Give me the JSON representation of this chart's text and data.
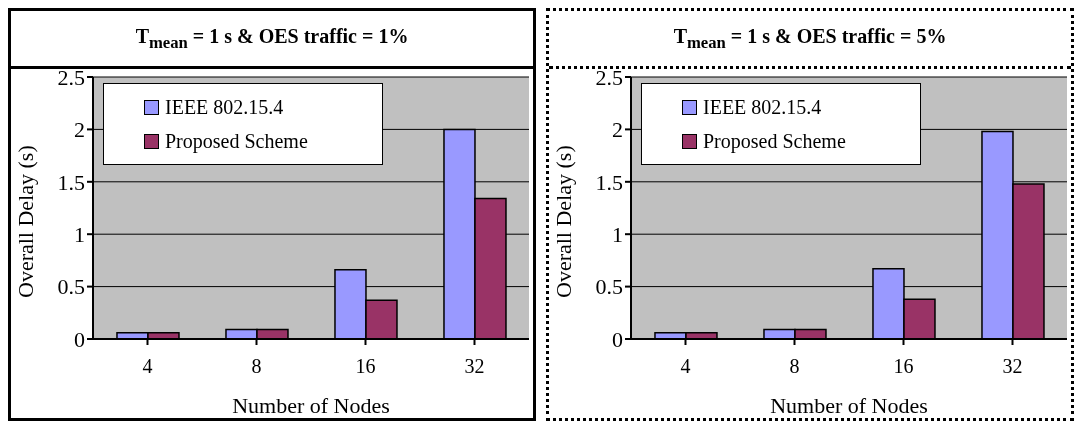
{
  "chart_data": [
    {
      "type": "bar",
      "title": "T$_{mean}$ = 1 s & OES traffic = 1%",
      "xlabel": "Number of Nodes",
      "ylabel": "Overall Delay (s)",
      "categories": [
        "4",
        "8",
        "16",
        "32"
      ],
      "series": [
        {
          "name": "IEEE 802.15.4",
          "color": "#9999ff",
          "values": [
            0.06,
            0.09,
            0.66,
            2.0
          ]
        },
        {
          "name": "Proposed Scheme",
          "color": "#993366",
          "values": [
            0.06,
            0.09,
            0.37,
            1.34
          ]
        }
      ],
      "ylim": [
        0,
        2.5
      ],
      "yticks": [
        0,
        0.5,
        1,
        1.5,
        2,
        2.5
      ],
      "grid": "y",
      "legend": "top left"
    },
    {
      "type": "bar",
      "title": "T$_{mean}$ = 1 s & OES traffic = 5%",
      "xlabel": "Number of Nodes",
      "ylabel": "Overall Delay (s)",
      "categories": [
        "4",
        "8",
        "16",
        "32"
      ],
      "series": [
        {
          "name": "IEEE 802.15.4",
          "color": "#9999ff",
          "values": [
            0.06,
            0.09,
            0.67,
            1.98
          ]
        },
        {
          "name": "Proposed Scheme",
          "color": "#993366",
          "values": [
            0.06,
            0.09,
            0.38,
            1.48
          ]
        }
      ],
      "ylim": [
        0,
        2.5
      ],
      "yticks": [
        0,
        0.5,
        1,
        1.5,
        2,
        2.5
      ],
      "grid": "y",
      "legend": "top left"
    }
  ]
}
